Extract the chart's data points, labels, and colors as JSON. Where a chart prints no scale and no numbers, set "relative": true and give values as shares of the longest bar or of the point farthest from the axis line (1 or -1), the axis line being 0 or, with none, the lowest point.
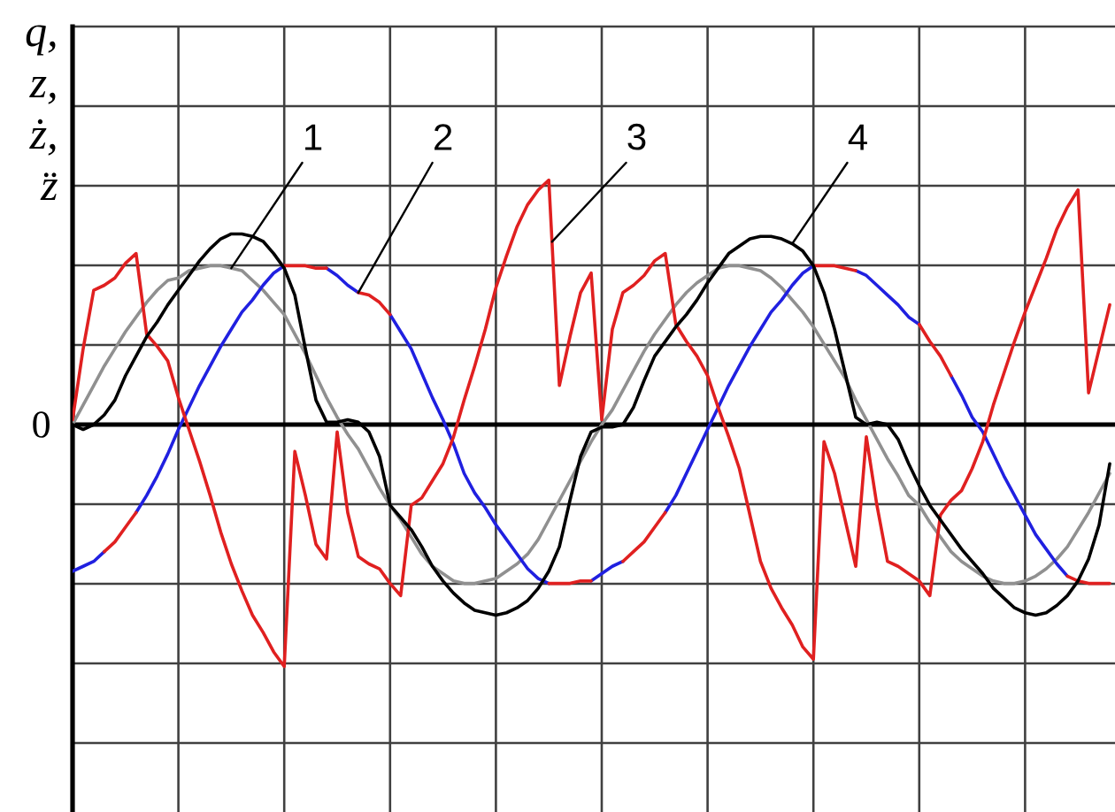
{
  "chart_data": {
    "type": "line",
    "relative": true,
    "ylabel": "q, z, ż, z̈",
    "grid": true,
    "categories": [
      null,
      null,
      null,
      null,
      null,
      null,
      null,
      null,
      null,
      null,
      null,
      null,
      null,
      null,
      null,
      null,
      null,
      null,
      null,
      null,
      null,
      null,
      null,
      null,
      null,
      null,
      null,
      null,
      null,
      null,
      null,
      null,
      null,
      null,
      null,
      null,
      null,
      null,
      null,
      null,
      null,
      null,
      null,
      null,
      null,
      null,
      null,
      null,
      null,
      null,
      null,
      null,
      null,
      null,
      null,
      null,
      null,
      null,
      null,
      null,
      null,
      null,
      null,
      null,
      null,
      null,
      null,
      null,
      null,
      null,
      null,
      null,
      null,
      null,
      null,
      null,
      null,
      null,
      null,
      null,
      null,
      null,
      null,
      null,
      null,
      null,
      null,
      null,
      null,
      null,
      null,
      null,
      null,
      null,
      null,
      null,
      null,
      null,
      null
    ],
    "series": [
      {
        "name": "1",
        "color": "#909090",
        "values": [
          0,
          0.08,
          0.16,
          0.24,
          0.31,
          0.38,
          0.44,
          0.5,
          0.55,
          0.59,
          0.6,
          0.63,
          0.64,
          0.65,
          0.65,
          0.64,
          0.63,
          0.59,
          0.55,
          0.5,
          0.45,
          0.37,
          0.29,
          0.2,
          0.11,
          0.03,
          -0.04,
          -0.1,
          -0.18,
          -0.26,
          -0.33,
          -0.39,
          -0.46,
          -0.53,
          -0.58,
          -0.61,
          -0.64,
          -0.65,
          -0.65,
          -0.64,
          -0.63,
          -0.6,
          -0.57,
          -0.53,
          -0.47,
          -0.39,
          -0.31,
          -0.23,
          -0.15,
          -0.07,
          0,
          0.06,
          0.14,
          0.22,
          0.3,
          0.37,
          0.43,
          0.49,
          0.54,
          0.58,
          0.61,
          0.64,
          0.65,
          0.65,
          0.64,
          0.63,
          0.6,
          0.56,
          0.51,
          0.46,
          0.4,
          0.33,
          0.26,
          0.19,
          0.1,
          0.02,
          -0.06,
          -0.14,
          -0.21,
          -0.29,
          -0.33,
          -0.4,
          -0.46,
          -0.52,
          -0.56,
          -0.59,
          -0.62,
          -0.64,
          -0.65,
          -0.65,
          -0.64,
          -0.62,
          -0.59,
          -0.55,
          -0.5,
          -0.43,
          -0.36,
          -0.28,
          -0.2
        ]
      },
      {
        "name": "2",
        "color": "#2020e0",
        "values": [
          -0.6,
          -0.58,
          -0.56,
          -0.52,
          null,
          null,
          -0.36,
          -0.29,
          -0.21,
          -0.12,
          -0.02,
          0.07,
          0.16,
          0.24,
          0.32,
          0.39,
          0.46,
          0.51,
          0.57,
          0.62,
          0.65,
          null,
          null,
          null,
          0.64,
          0.61,
          0.57,
          0.54,
          null,
          null,
          0.45,
          0.38,
          0.31,
          0.21,
          0.11,
          0.02,
          -0.08,
          -0.2,
          -0.28,
          -0.34,
          -0.41,
          -0.47,
          -0.53,
          -0.59,
          -0.63,
          -0.65,
          null,
          null,
          null,
          -0.64,
          -0.61,
          -0.58,
          -0.56,
          null,
          null,
          null,
          -0.36,
          -0.29,
          -0.2,
          -0.11,
          -0.02,
          0.07,
          0.16,
          0.24,
          0.32,
          0.39,
          0.46,
          0.51,
          0.57,
          0.62,
          0.65,
          null,
          null,
          null,
          0.63,
          0.61,
          0.57,
          0.53,
          0.49,
          0.44,
          0.41,
          null,
          null,
          0.2,
          0.12,
          0.03,
          -0.03,
          -0.12,
          -0.21,
          -0.29,
          -0.37,
          -0.45,
          -0.51,
          -0.57,
          -0.62,
          null,
          null,
          null,
          null
        ]
      },
      {
        "color": "#e02020",
        "values": [
          null,
          null,
          null,
          -0.52,
          -0.48,
          -0.42,
          -0.36,
          null,
          null,
          null,
          null,
          null,
          null,
          null,
          null,
          null,
          null,
          null,
          null,
          null,
          0.65,
          0.65,
          0.65,
          0.64,
          0.64,
          null,
          null,
          0.54,
          0.53,
          0.5,
          0.45,
          null,
          null,
          null,
          null,
          null,
          null,
          null,
          null,
          null,
          null,
          null,
          null,
          null,
          null,
          -0.65,
          -0.65,
          -0.65,
          -0.64,
          -0.64,
          null,
          null,
          -0.56,
          -0.52,
          -0.48,
          -0.42,
          -0.36,
          null,
          null,
          null,
          null,
          null,
          null,
          null,
          null,
          null,
          null,
          null,
          null,
          null,
          0.65,
          0.65,
          0.65,
          0.64,
          0.63,
          null,
          null,
          null,
          null,
          null,
          0.41,
          0.34,
          0.28,
          0.2,
          null,
          null,
          null,
          null,
          null,
          null,
          null,
          null,
          null,
          null,
          -0.62,
          -0.64,
          -0.65,
          -0.65,
          -0.65
        ]
      },
      {
        "name": "3",
        "color": "#e02020",
        "values": [
          0.02,
          0.31,
          0.55,
          0.57,
          0.6,
          0.66,
          0.7,
          0.37,
          0.32,
          0.26,
          0.11,
          -0.02,
          -0.15,
          -0.29,
          -0.44,
          -0.57,
          -0.68,
          -0.78,
          -0.85,
          -0.93,
          -0.99,
          -0.11,
          -0.29,
          -0.49,
          -0.55,
          -0.03,
          -0.36,
          -0.54,
          -0.57,
          -0.59,
          -0.65,
          -0.7,
          -0.33,
          -0.3,
          -0.23,
          -0.16,
          -0.05,
          0.1,
          0.24,
          0.39,
          0.56,
          0.69,
          0.81,
          0.9,
          0.96,
          1.0,
          0.16,
          0.36,
          0.54,
          0.62,
          0.02,
          0.39,
          0.54,
          0.57,
          0.61,
          0.67,
          0.7,
          0.41,
          0.34,
          0.28,
          0.2,
          0.07,
          -0.05,
          -0.18,
          -0.37,
          -0.56,
          -0.67,
          -0.75,
          -0.82,
          -0.91,
          -0.96,
          -0.07,
          -0.2,
          -0.39,
          -0.58,
          -0.05,
          -0.33,
          -0.56,
          -0.58,
          -0.61,
          -0.64,
          -0.7,
          -0.37,
          -0.31,
          -0.27,
          -0.18,
          -0.07,
          0.08,
          0.21,
          0.34,
          0.46,
          0.57,
          0.68,
          0.8,
          0.89,
          0.96,
          0.13,
          0.31,
          0.49
        ]
      },
      {
        "name": "4",
        "color": "#000000",
        "values": [
          0,
          -0.02,
          0,
          0.04,
          0.1,
          0.2,
          0.28,
          0.36,
          0.42,
          0.49,
          0.55,
          0.61,
          0.67,
          0.72,
          0.76,
          0.78,
          0.78,
          0.77,
          0.75,
          0.7,
          0.64,
          0.53,
          0.31,
          0.1,
          0.01,
          0.01,
          0.02,
          0.01,
          -0.03,
          -0.13,
          -0.33,
          -0.38,
          -0.43,
          -0.5,
          -0.58,
          -0.64,
          -0.69,
          -0.73,
          -0.76,
          -0.77,
          -0.78,
          -0.77,
          -0.75,
          -0.72,
          -0.67,
          -0.6,
          -0.5,
          -0.31,
          -0.13,
          -0.03,
          -0.01,
          -0.01,
          0,
          0.07,
          0.18,
          0.28,
          0.34,
          0.4,
          0.45,
          0.51,
          0.58,
          0.64,
          0.7,
          0.73,
          0.76,
          0.77,
          0.77,
          0.76,
          0.74,
          0.71,
          0.65,
          0.54,
          0.39,
          0.21,
          0.03,
          0,
          0.01,
          0,
          -0.06,
          -0.16,
          -0.25,
          -0.33,
          -0.39,
          -0.45,
          -0.51,
          -0.56,
          -0.61,
          -0.67,
          -0.71,
          -0.75,
          -0.77,
          -0.78,
          -0.77,
          -0.74,
          -0.7,
          -0.64,
          -0.55,
          -0.41,
          -0.16
        ]
      }
    ],
    "ref_lines": [
      {
        "axis": "y",
        "value": 0,
        "label": "0"
      }
    ]
  }
}
